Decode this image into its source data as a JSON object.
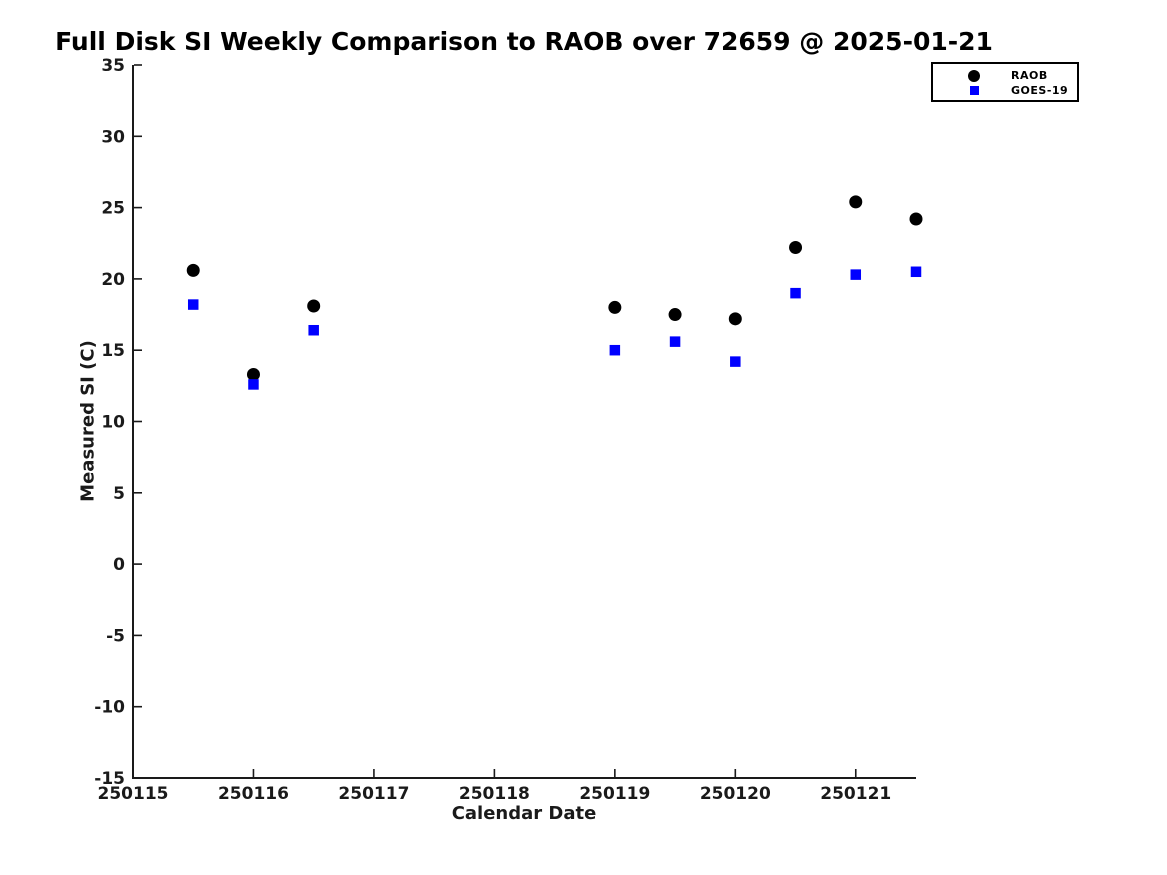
{
  "chart_data": {
    "type": "scatter",
    "title": "Full Disk SI Weekly Comparison to RAOB over 72659 @ 2025-01-21",
    "xlabel": "Calendar Date",
    "ylabel": "Measured SI (C)",
    "xlim": [
      250115,
      250121.5
    ],
    "ylim": [
      -15,
      35
    ],
    "xticks": [
      250115,
      250116,
      250117,
      250118,
      250119,
      250120,
      250121
    ],
    "yticks": [
      35,
      30,
      25,
      20,
      15,
      10,
      5,
      0,
      -5,
      -10,
      -15
    ],
    "grid": false,
    "axis_color": "#1a1a1a",
    "legend": {
      "position": "top-right",
      "entries": [
        {
          "label": "RAOB",
          "marker": "circle",
          "color": "#000000"
        },
        {
          "label": "GOES-19",
          "marker": "square",
          "color": "#0000ff"
        }
      ]
    },
    "series": [
      {
        "name": "RAOB",
        "marker": "circle",
        "color": "#000000",
        "marker_size": 13,
        "points": [
          [
            250115.5,
            20.6
          ],
          [
            250116.0,
            13.3
          ],
          [
            250116.5,
            18.1
          ],
          [
            250119.0,
            18.0
          ],
          [
            250119.5,
            17.5
          ],
          [
            250120.0,
            17.2
          ],
          [
            250120.5,
            22.2
          ],
          [
            250121.0,
            25.4
          ],
          [
            250121.5,
            24.2
          ]
        ]
      },
      {
        "name": "GOES-19",
        "marker": "square",
        "color": "#0000ff",
        "marker_size": 10.5,
        "points": [
          [
            250115.5,
            18.2
          ],
          [
            250116.0,
            12.6
          ],
          [
            250116.5,
            16.4
          ],
          [
            250119.0,
            15.0
          ],
          [
            250119.5,
            15.6
          ],
          [
            250120.0,
            14.2
          ],
          [
            250120.5,
            19.0
          ],
          [
            250121.0,
            20.3
          ],
          [
            250121.5,
            20.5
          ]
        ]
      }
    ]
  }
}
